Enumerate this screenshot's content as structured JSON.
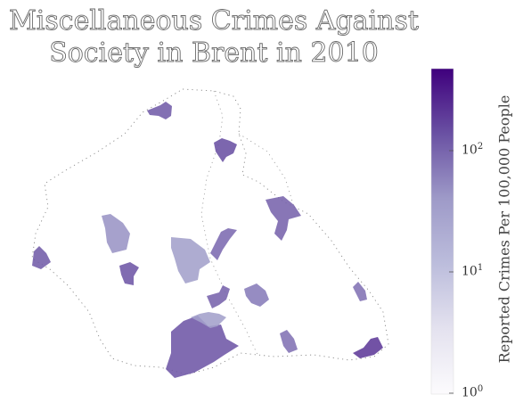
{
  "title_lines": [
    "Miscellaneous Crimes Against",
    "Society in Brent in 2010"
  ],
  "colorbar": {
    "label": "Reported Crimes Per 100,000 People",
    "scale": "log",
    "range": [
      1,
      400
    ],
    "ticks": [
      {
        "value": 1,
        "base": "10",
        "exp": "0"
      },
      {
        "value": 10,
        "base": "10",
        "exp": "1"
      },
      {
        "value": 100,
        "base": "10",
        "exp": "2"
      }
    ],
    "colormap": "Purples"
  },
  "chart_data": {
    "type": "heatmap",
    "region": "Brent",
    "year": "2010",
    "areas": [
      {
        "id": "nw-top",
        "value": 100
      },
      {
        "id": "north-center",
        "value": 120
      },
      {
        "id": "west-tall",
        "value": 40
      },
      {
        "id": "west-edge",
        "value": 100
      },
      {
        "id": "west-small",
        "value": 110
      },
      {
        "id": "center-large",
        "value": 30
      },
      {
        "id": "center-tail",
        "value": 80
      },
      {
        "id": "east-upper",
        "value": 90
      },
      {
        "id": "middle-small",
        "value": 60
      },
      {
        "id": "middle-cluster",
        "value": 90
      },
      {
        "id": "south-large",
        "value": 110
      },
      {
        "id": "south-light",
        "value": 30
      },
      {
        "id": "southeast-small",
        "value": 70
      },
      {
        "id": "east-small",
        "value": 70
      },
      {
        "id": "southeast-edge",
        "value": 170
      }
    ]
  }
}
